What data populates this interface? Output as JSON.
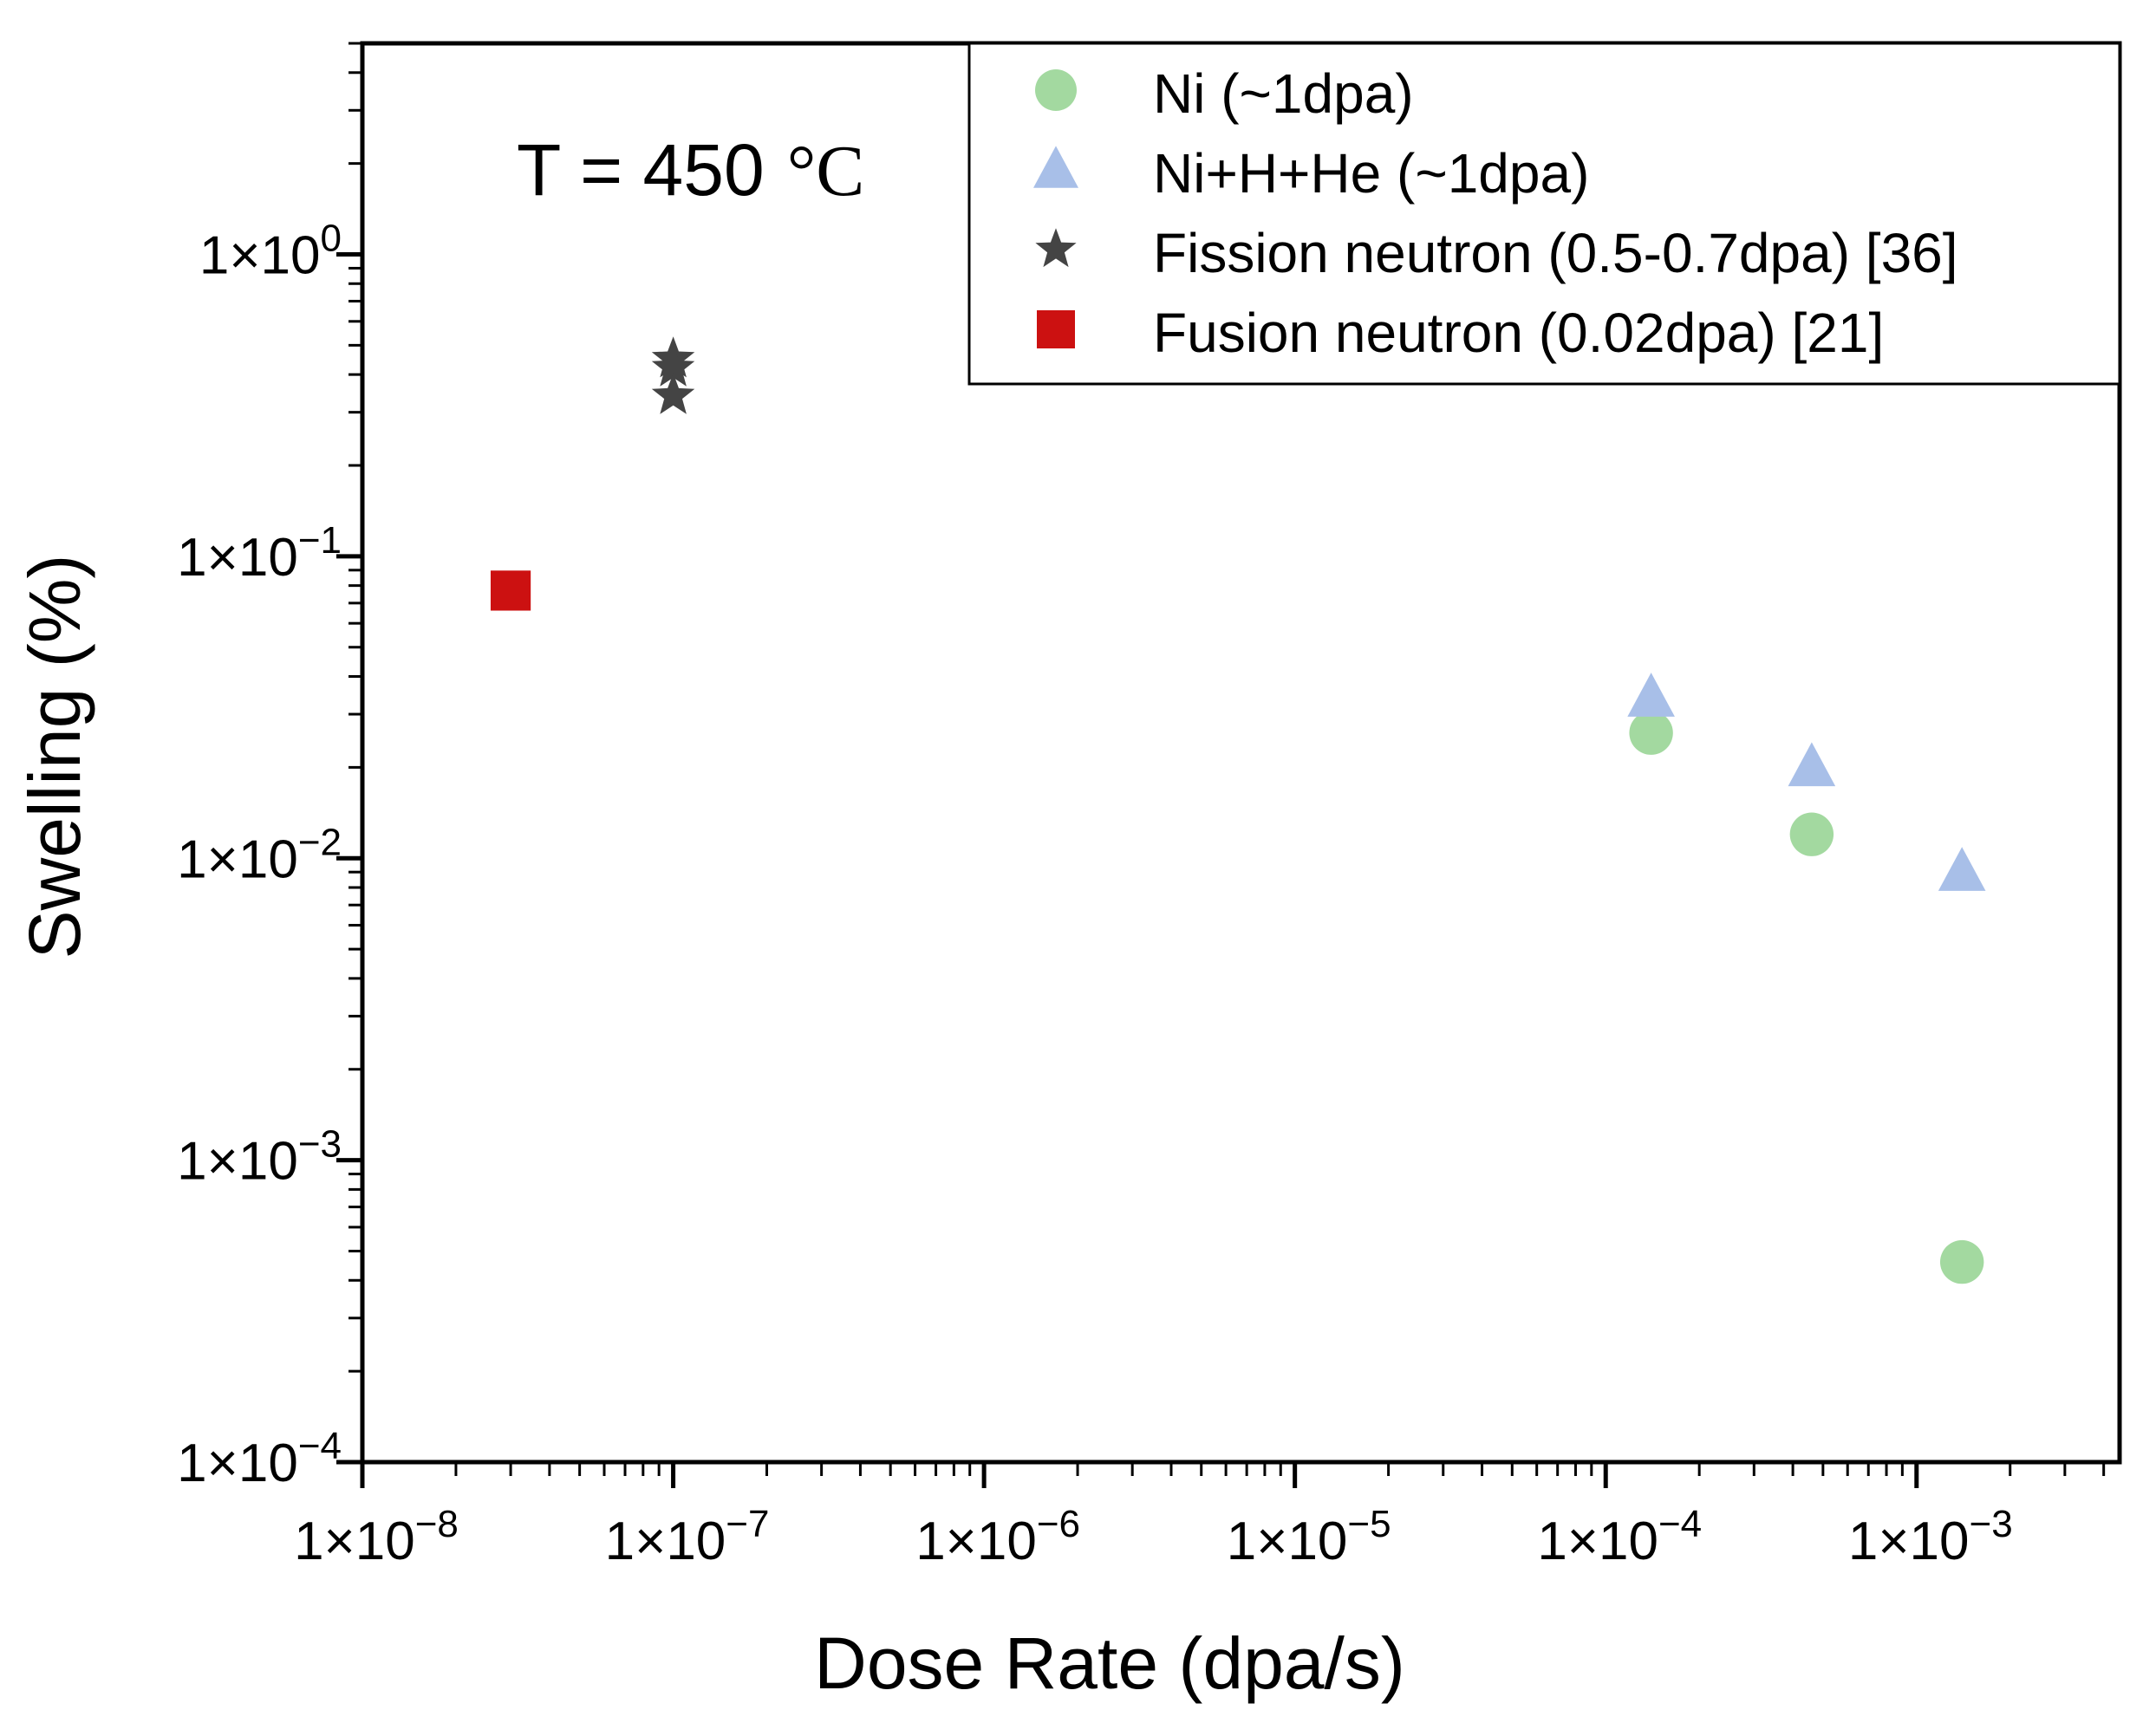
{
  "chart_data": {
    "type": "scatter",
    "title": "",
    "xlabel": "Dose Rate (dpa/s)",
    "ylabel": "Swelling (%)",
    "xscale": "log",
    "yscale": "log",
    "xlim": [
      1e-08,
      0.0045
    ],
    "ylim": [
      0.0001,
      5
    ],
    "x_tick_labels": [
      {
        "value": 1e-08,
        "mantissa": "1×10",
        "exp": "−8"
      },
      {
        "value": 1e-07,
        "mantissa": "1×10",
        "exp": "−7"
      },
      {
        "value": 1e-06,
        "mantissa": "1×10",
        "exp": "−6"
      },
      {
        "value": 1e-05,
        "mantissa": "1×10",
        "exp": "−5"
      },
      {
        "value": 0.0001,
        "mantissa": "1×10",
        "exp": "−4"
      },
      {
        "value": 0.001,
        "mantissa": "1×10",
        "exp": "−3"
      }
    ],
    "y_tick_labels": [
      {
        "value": 0.0001,
        "mantissa": "1×10",
        "exp": "−4"
      },
      {
        "value": 0.001,
        "mantissa": "1×10",
        "exp": "−3"
      },
      {
        "value": 0.01,
        "mantissa": "1×10",
        "exp": "−2"
      },
      {
        "value": 0.1,
        "mantissa": "1×10",
        "exp": "−1"
      },
      {
        "value": 1,
        "mantissa": "1×10",
        "exp": "0"
      }
    ],
    "legend_position": "top-right",
    "grid": false,
    "annotation": {
      "prefix": "T = 450",
      "unit": "°C"
    },
    "series": [
      {
        "name": "Ni (~1dpa)",
        "marker": "circle",
        "color": "#a3d9a0",
        "points": [
          {
            "x": 0.00014,
            "y": 0.026
          },
          {
            "x": 0.00046,
            "y": 0.012
          },
          {
            "x": 0.0014,
            "y": 0.00046
          }
        ]
      },
      {
        "name": "Ni+H+He (~1dpa)",
        "marker": "triangle",
        "color": "#a8bfe8",
        "points": [
          {
            "x": 0.00014,
            "y": 0.034
          },
          {
            "x": 0.00046,
            "y": 0.02
          },
          {
            "x": 0.0014,
            "y": 0.009
          }
        ]
      },
      {
        "name": "Fission neutron (0.5-0.7dpa) [36]",
        "marker": "star",
        "color": "#444444",
        "points": [
          {
            "x": 1e-07,
            "y": 0.45
          },
          {
            "x": 1e-07,
            "y": 0.42
          },
          {
            "x": 1e-07,
            "y": 0.34
          }
        ]
      },
      {
        "name": "Fusion neutron (0.02dpa) [21]",
        "marker": "square",
        "color": "#cc1111",
        "points": [
          {
            "x": 3e-08,
            "y": 0.077
          }
        ]
      }
    ]
  }
}
